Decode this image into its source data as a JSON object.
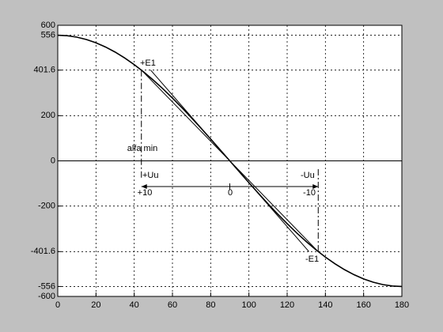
{
  "chart_data": {
    "type": "line",
    "x": [
      0,
      5,
      10,
      15,
      20,
      25,
      30,
      35,
      40,
      45,
      50,
      55,
      60,
      65,
      70,
      75,
      80,
      85,
      90,
      95,
      100,
      105,
      110,
      115,
      120,
      125,
      130,
      135,
      140,
      145,
      150,
      155,
      160,
      165,
      170,
      175,
      180
    ],
    "series": [
      {
        "color": "#000000",
        "values": [
          556,
          553.88,
          547.55,
          537.06,
          522.47,
          503.91,
          481.51,
          455.45,
          425.92,
          393.15,
          357.39,
          318.91,
          278,
          234.98,
          190.16,
          143.9,
          96.55,
          48.46,
          0,
          -48.46,
          -96.55,
          -143.9,
          -190.16,
          -234.98,
          -278,
          -318.91,
          -357.39,
          -393.15,
          -425.92,
          -455.45,
          -481.51,
          -503.91,
          -522.47,
          -537.06,
          -547.55,
          -553.88,
          -556
        ]
      }
    ],
    "lines": [
      {
        "x": [
          43.75,
          136.25
        ],
        "values": [
          401.6,
          -401.6
        ]
      },
      {
        "x": [
          48.6,
          131.4
        ],
        "values": [
          401.6,
          -401.6
        ]
      }
    ],
    "annotations": [
      "+E1",
      "-E1",
      "alfa min",
      "+Uu",
      "-Uu",
      "+10",
      "0",
      "-10"
    ],
    "xlim": [
      0,
      180
    ],
    "xticks": [
      0,
      20,
      40,
      60,
      80,
      100,
      120,
      140,
      160,
      180
    ],
    "ylim": [
      -600,
      600
    ],
    "yticks": [
      -600,
      -556,
      -401.6,
      -200,
      0,
      200,
      401.6,
      556,
      600
    ],
    "grid": true
  }
}
